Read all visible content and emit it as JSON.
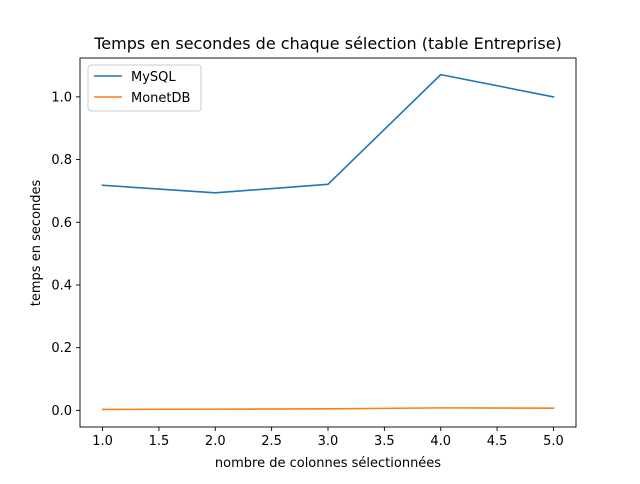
{
  "chart_data": {
    "type": "line",
    "title": "Temps en secondes de chaque sélection (table Entreprise)",
    "xlabel": "nombre de colonnes sélectionnées",
    "ylabel": "temps en secondes",
    "xlim": [
      0.8,
      5.2
    ],
    "ylim": [
      -0.053,
      1.124
    ],
    "xticks": [
      "1.0",
      "1.5",
      "2.0",
      "2.5",
      "3.0",
      "3.5",
      "4.0",
      "4.5",
      "5.0"
    ],
    "yticks": [
      "0.0",
      "0.2",
      "0.4",
      "0.6",
      "0.8",
      "1.0"
    ],
    "grid": false,
    "legend_position": "upper left",
    "x": [
      1,
      2,
      3,
      4,
      5
    ],
    "series": [
      {
        "name": "MySQL",
        "color": "#1f77b4",
        "values": [
          0.718,
          0.694,
          0.721,
          1.071,
          1.0
        ]
      },
      {
        "name": "MonetDB",
        "color": "#ff7f0e",
        "values": [
          0.003,
          0.004,
          0.005,
          0.008,
          0.007
        ]
      }
    ]
  }
}
